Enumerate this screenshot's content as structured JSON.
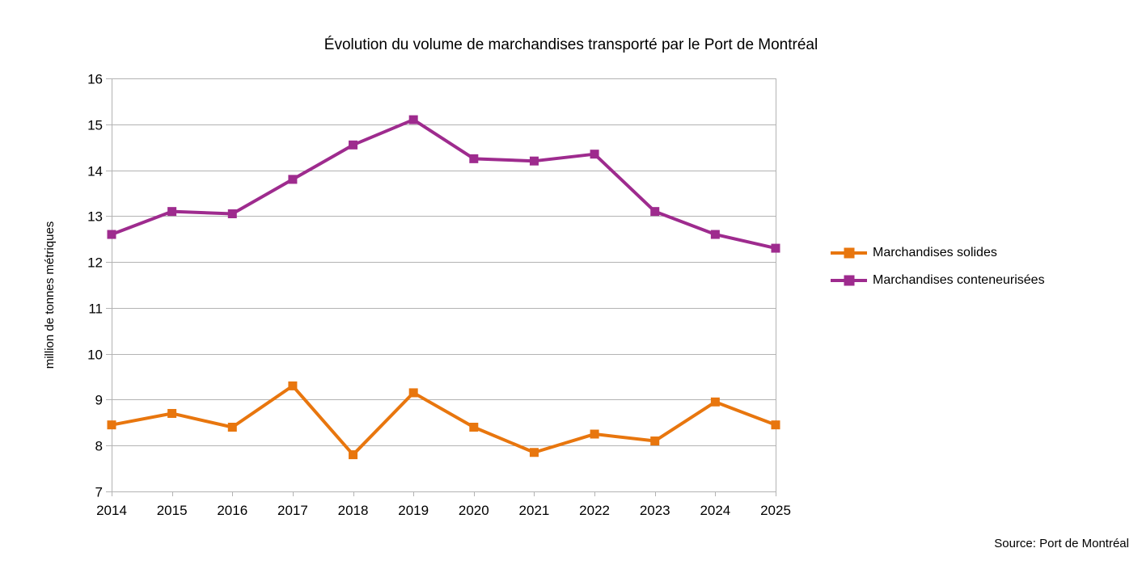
{
  "title": "Évolution du volume de marchandises transporté par le Port de Montréal",
  "source": "Source: Port de Montréal",
  "colors": {
    "background": "#ffffff",
    "gridline": "#b3b3b3",
    "text": "#000000",
    "series_solides": "#e8760e",
    "series_conteneurisees": "#9e2b8e"
  },
  "chart_data": {
    "type": "line",
    "title": "Évolution du volume de marchandises transporté par le Port de Montréal",
    "xlabel": "",
    "ylabel": "million de tonnes métriques",
    "categories": [
      "2014",
      "2015",
      "2016",
      "2017",
      "2018",
      "2019",
      "2020",
      "2021",
      "2022",
      "2023",
      "2024",
      "2025"
    ],
    "series": [
      {
        "name": "Marchandises solides",
        "color": "#e8760e",
        "marker": "square",
        "values": [
          8.45,
          8.7,
          8.4,
          9.3,
          7.8,
          9.15,
          8.4,
          7.85,
          8.25,
          8.1,
          8.95,
          8.45
        ]
      },
      {
        "name": "Marchandises conteneurisées",
        "color": "#9e2b8e",
        "marker": "square",
        "values": [
          12.6,
          13.1,
          13.05,
          13.8,
          14.55,
          15.1,
          14.25,
          14.2,
          14.35,
          13.1,
          12.6,
          12.3
        ]
      }
    ],
    "ylim": [
      7,
      16
    ],
    "ytick_step": 1,
    "grid": "horizontal",
    "legend_position": "right",
    "annotation": "Source: Port de Montréal"
  }
}
